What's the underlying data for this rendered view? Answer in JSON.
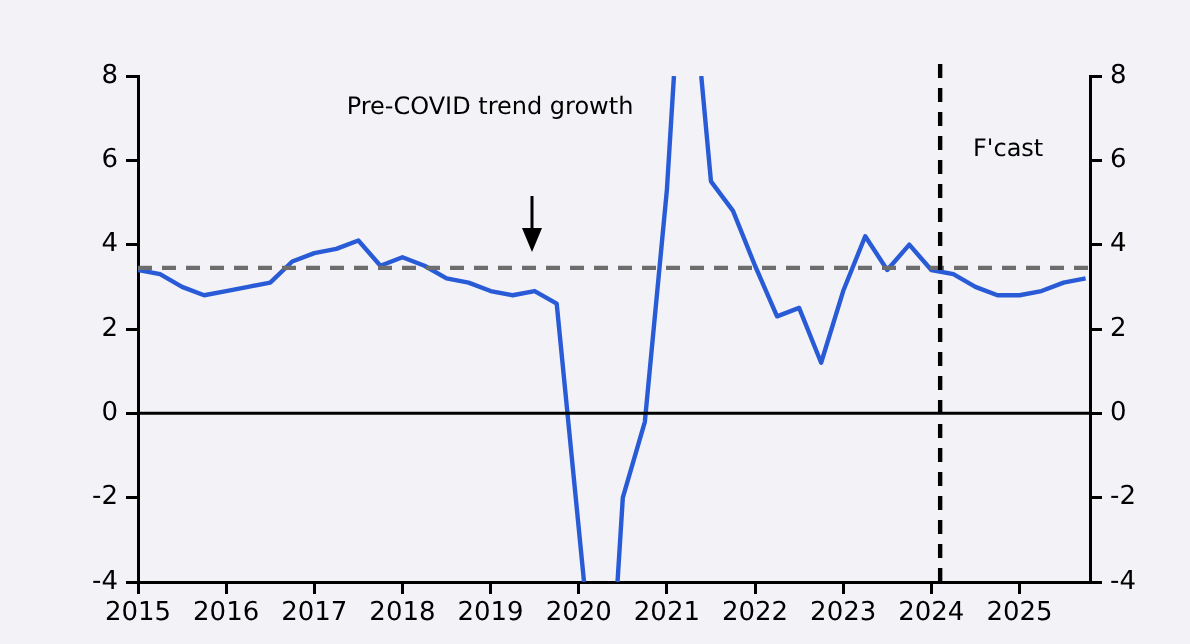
{
  "chart_data": {
    "type": "line",
    "annotations": [
      "Pre-COVID trend growth"
    ],
    "xlim": [
      2015,
      2025.8
    ],
    "xticks": [
      2015,
      2016,
      2017,
      2018,
      2019,
      2020,
      2021,
      2022,
      2023,
      2024,
      2025
    ],
    "ylim": [
      -4,
      8
    ],
    "yticks": [
      -4,
      -2,
      0,
      2,
      4,
      6,
      8
    ],
    "y2lim": [
      -4,
      8
    ],
    "y2ticks": [
      -4,
      -2,
      0,
      2,
      4,
      6,
      8
    ],
    "grid": false,
    "legend": false,
    "marker": "none",
    "line_style": "solid",
    "series": [
      {
        "color": "#2a5bd7",
        "x": [
          2015,
          2015.25,
          2015.5,
          2015.75,
          2016,
          2016.25,
          2016.5,
          2016.75,
          2017,
          2017.25,
          2017.5,
          2017.75,
          2018,
          2018.25,
          2018.5,
          2018.75,
          2019,
          2019.25,
          2019.5,
          2019.75,
          2020.06,
          2020.25,
          2020.44,
          2020.5,
          2020.75,
          2021,
          2021.08,
          2021.25,
          2021.39,
          2021.5,
          2021.75,
          2022,
          2022.25,
          2022.5,
          2022.75,
          2023,
          2023.25,
          2023.5,
          2023.75,
          2024,
          2024.25,
          2024.5,
          2024.75,
          2025,
          2025.25,
          2025.5,
          2025.75
        ],
        "values": [
          3.4,
          3.3,
          3.0,
          2.8,
          2.9,
          3.0,
          3.1,
          3.6,
          3.8,
          3.9,
          4.1,
          3.5,
          3.7,
          3.5,
          3.2,
          3.1,
          2.9,
          2.8,
          2.9,
          2.6,
          -4,
          null,
          -4,
          -2.0,
          -0.2,
          5.3,
          8,
          null,
          8,
          5.5,
          4.8,
          3.5,
          2.3,
          2.5,
          1.2,
          2.9,
          4.2,
          3.4,
          4.0,
          3.4,
          3.3,
          3.0,
          2.8,
          2.8,
          2.9,
          3.1,
          3.2
        ]
      }
    ],
    "ref_lines": [
      {
        "axis": "y",
        "value": 0,
        "color": "#000000",
        "line_style": "solid"
      },
      {
        "axis": "y",
        "value": 3.45,
        "color": "#6d6d6d",
        "line_style": "dashed"
      },
      {
        "axis": "x",
        "value": 2024.1,
        "label": "F'cast",
        "color": "#000000",
        "line_style": "dashed"
      }
    ]
  }
}
